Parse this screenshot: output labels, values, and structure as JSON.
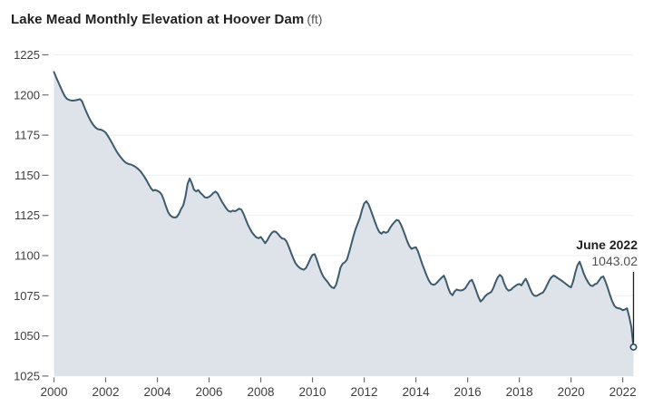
{
  "title": {
    "main": "Lake Mead Monthly Elevation at Hoover Dam",
    "unit": "(ft)"
  },
  "annotation": {
    "label": "June 2022",
    "value": "1043.02"
  },
  "chart_data": {
    "type": "area",
    "title": "Lake Mead Monthly Elevation at Hoover Dam (ft)",
    "xlabel": "",
    "ylabel": "ft",
    "x_start_year": 2000,
    "x_interval": "monthly",
    "x_end": "June 2022",
    "xlim": [
      2000,
      2022.417
    ],
    "ylim": [
      1025,
      1225
    ],
    "xticks": [
      2000,
      2002,
      2004,
      2006,
      2008,
      2010,
      2012,
      2014,
      2016,
      2018,
      2020,
      2022
    ],
    "yticks": [
      1225,
      1200,
      1175,
      1150,
      1125,
      1100,
      1075,
      1050,
      1025
    ],
    "grid": "horizontal",
    "legend": "none",
    "series_name": "Monthly elevation (ft)",
    "values": [
      1214.3,
      1211.0,
      1208.0,
      1205.0,
      1202.0,
      1199.3,
      1197.6,
      1196.9,
      1196.6,
      1196.5,
      1196.7,
      1197.0,
      1197.4,
      1196.2,
      1192.8,
      1189.6,
      1186.6,
      1184.0,
      1181.8,
      1180.1,
      1179.0,
      1178.5,
      1178.3,
      1177.6,
      1176.6,
      1174.6,
      1172.4,
      1170.0,
      1167.4,
      1165.0,
      1163.0,
      1161.2,
      1159.6,
      1158.2,
      1157.4,
      1156.9,
      1156.6,
      1155.9,
      1155.1,
      1154.0,
      1152.7,
      1151.0,
      1149.0,
      1146.8,
      1144.3,
      1142.0,
      1140.4,
      1140.9,
      1140.3,
      1139.6,
      1138.0,
      1134.6,
      1130.6,
      1127.0,
      1125.0,
      1124.0,
      1123.7,
      1124.0,
      1126.0,
      1129.0,
      1131.2,
      1136.5,
      1144.5,
      1148.0,
      1145.0,
      1141.0,
      1140.0,
      1140.8,
      1139.0,
      1137.8,
      1136.3,
      1136.0,
      1136.6,
      1137.6,
      1139.0,
      1139.9,
      1138.6,
      1136.0,
      1133.5,
      1131.4,
      1129.3,
      1127.8,
      1127.3,
      1128.0,
      1127.6,
      1128.3,
      1129.2,
      1128.6,
      1126.0,
      1122.6,
      1119.3,
      1116.6,
      1114.3,
      1112.6,
      1111.3,
      1110.8,
      1111.6,
      1109.8,
      1107.7,
      1109.5,
      1112.0,
      1114.0,
      1115.1,
      1114.8,
      1113.5,
      1111.8,
      1110.6,
      1110.4,
      1108.7,
      1105.5,
      1102.0,
      1098.5,
      1095.5,
      1093.7,
      1092.4,
      1091.6,
      1091.2,
      1092.3,
      1095.0,
      1098.0,
      1100.4,
      1100.9,
      1097.5,
      1093.4,
      1089.8,
      1087.0,
      1085.2,
      1083.6,
      1081.6,
      1080.2,
      1079.7,
      1082.0,
      1087.0,
      1092.5,
      1095.0,
      1095.8,
      1097.5,
      1102.0,
      1107.0,
      1112.0,
      1116.5,
      1120.0,
      1123.5,
      1128.5,
      1132.5,
      1133.8,
      1132.0,
      1128.5,
      1124.8,
      1121.0,
      1117.4,
      1114.7,
      1113.6,
      1114.9,
      1114.2,
      1114.8,
      1117.2,
      1119.2,
      1120.8,
      1122.2,
      1121.8,
      1119.5,
      1116.2,
      1112.6,
      1108.8,
      1105.8,
      1104.2,
      1104.8,
      1105.2,
      1102.5,
      1098.5,
      1094.5,
      1091.0,
      1087.5,
      1084.5,
      1082.5,
      1081.8,
      1082.2,
      1083.5,
      1085.0,
      1086.3,
      1087.5,
      1084.2,
      1079.8,
      1076.6,
      1075.3,
      1077.8,
      1078.9,
      1078.4,
      1078.3,
      1078.7,
      1079.8,
      1082.0,
      1084.0,
      1084.9,
      1081.8,
      1078.0,
      1074.3,
      1071.4,
      1072.6,
      1074.5,
      1075.8,
      1076.6,
      1077.4,
      1080.0,
      1083.5,
      1086.5,
      1088.0,
      1086.6,
      1082.6,
      1079.6,
      1078.2,
      1078.6,
      1079.9,
      1080.9,
      1081.9,
      1082.3,
      1081.4,
      1083.8,
      1085.6,
      1082.8,
      1079.2,
      1076.4,
      1075.0,
      1074.9,
      1075.6,
      1076.4,
      1077.0,
      1079.2,
      1082.0,
      1084.8,
      1086.6,
      1087.6,
      1086.8,
      1085.8,
      1085.0,
      1084.0,
      1083.0,
      1082.0,
      1080.9,
      1080.2,
      1084.0,
      1089.5,
      1094.0,
      1096.2,
      1092.5,
      1088.5,
      1085.6,
      1083.2,
      1081.4,
      1081.0,
      1082.1,
      1082.6,
      1084.5,
      1086.4,
      1087.0,
      1083.8,
      1080.0,
      1075.8,
      1072.0,
      1069.0,
      1067.6,
      1067.2,
      1066.9,
      1066.0,
      1066.4,
      1067.2,
      1062.0,
      1055.5,
      1043.02
    ],
    "last_point": {
      "date": "June 2022",
      "value": 1043.02
    },
    "colors": {
      "line": "#3d5b6d",
      "fill": "#dce2e8",
      "grid": "#efefef",
      "axis_tick": "#6e6e6e",
      "tick_label": "#3e3e3e",
      "annotation_line": "#1f1f1f",
      "marker_stroke": "#2e4a5c",
      "marker_fill": "#eef2f4",
      "background": "#ffffff"
    }
  }
}
